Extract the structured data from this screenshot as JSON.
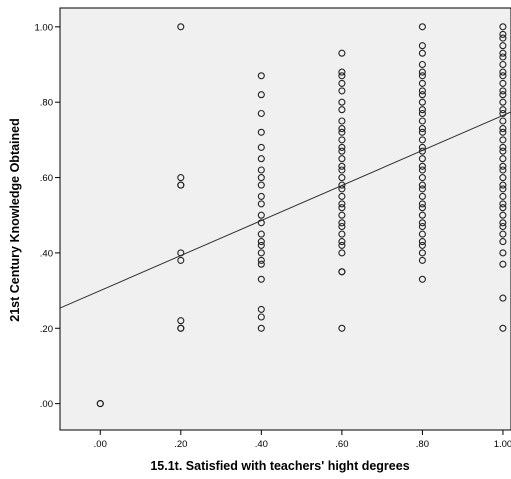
{
  "chart_data": {
    "type": "scatter",
    "xlabel": "15.1t. Satisfied with teachers' hight degrees",
    "ylabel": "21st Century Knowledge Obtained",
    "xlim": [
      -0.1,
      1.02
    ],
    "ylim": [
      -0.07,
      1.05
    ],
    "x_ticks": [
      0,
      0.2,
      0.4,
      0.6,
      0.8,
      1.0
    ],
    "x_tick_labels": [
      ".00",
      ".20",
      ".40",
      ".60",
      ".80",
      "1.00"
    ],
    "y_ticks": [
      0,
      0.2,
      0.4,
      0.6,
      0.8,
      1.0
    ],
    "y_tick_labels": [
      ".00",
      ".20",
      ".40",
      ".60",
      ".80",
      "1.00"
    ],
    "grid": false,
    "background": "#f0f0f0",
    "marker": "open-circle",
    "marker_color": "#222222",
    "series": [
      {
        "points": [
          [
            0.0,
            0.0
          ],
          [
            0.0,
            0.0
          ],
          [
            0.2,
            1.0
          ],
          [
            0.2,
            0.6
          ],
          [
            0.2,
            0.58
          ],
          [
            0.2,
            0.58
          ],
          [
            0.2,
            0.4
          ],
          [
            0.2,
            0.38
          ],
          [
            0.2,
            0.22
          ],
          [
            0.2,
            0.2
          ],
          [
            0.2,
            0.2
          ],
          [
            0.4,
            0.87
          ],
          [
            0.4,
            0.82
          ],
          [
            0.4,
            0.77
          ],
          [
            0.4,
            0.72
          ],
          [
            0.4,
            0.68
          ],
          [
            0.4,
            0.65
          ],
          [
            0.4,
            0.62
          ],
          [
            0.4,
            0.6
          ],
          [
            0.4,
            0.58
          ],
          [
            0.4,
            0.55
          ],
          [
            0.4,
            0.53
          ],
          [
            0.4,
            0.5
          ],
          [
            0.4,
            0.48
          ],
          [
            0.4,
            0.45
          ],
          [
            0.4,
            0.43
          ],
          [
            0.4,
            0.42
          ],
          [
            0.4,
            0.4
          ],
          [
            0.4,
            0.38
          ],
          [
            0.4,
            0.37
          ],
          [
            0.4,
            0.33
          ],
          [
            0.4,
            0.25
          ],
          [
            0.4,
            0.23
          ],
          [
            0.4,
            0.2
          ],
          [
            0.6,
            0.93
          ],
          [
            0.6,
            0.88
          ],
          [
            0.6,
            0.87
          ],
          [
            0.6,
            0.85
          ],
          [
            0.6,
            0.83
          ],
          [
            0.6,
            0.8
          ],
          [
            0.6,
            0.78
          ],
          [
            0.6,
            0.75
          ],
          [
            0.6,
            0.73
          ],
          [
            0.6,
            0.72
          ],
          [
            0.6,
            0.7
          ],
          [
            0.6,
            0.68
          ],
          [
            0.6,
            0.67
          ],
          [
            0.6,
            0.65
          ],
          [
            0.6,
            0.63
          ],
          [
            0.6,
            0.62
          ],
          [
            0.6,
            0.6
          ],
          [
            0.6,
            0.58
          ],
          [
            0.6,
            0.57
          ],
          [
            0.6,
            0.55
          ],
          [
            0.6,
            0.53
          ],
          [
            0.6,
            0.52
          ],
          [
            0.6,
            0.5
          ],
          [
            0.6,
            0.48
          ],
          [
            0.6,
            0.47
          ],
          [
            0.6,
            0.45
          ],
          [
            0.6,
            0.43
          ],
          [
            0.6,
            0.42
          ],
          [
            0.6,
            0.4
          ],
          [
            0.6,
            0.35
          ],
          [
            0.6,
            0.35
          ],
          [
            0.6,
            0.2
          ],
          [
            0.8,
            1.0
          ],
          [
            0.8,
            0.95
          ],
          [
            0.8,
            0.93
          ],
          [
            0.8,
            0.9
          ],
          [
            0.8,
            0.88
          ],
          [
            0.8,
            0.87
          ],
          [
            0.8,
            0.85
          ],
          [
            0.8,
            0.83
          ],
          [
            0.8,
            0.82
          ],
          [
            0.8,
            0.8
          ],
          [
            0.8,
            0.78
          ],
          [
            0.8,
            0.77
          ],
          [
            0.8,
            0.75
          ],
          [
            0.8,
            0.73
          ],
          [
            0.8,
            0.72
          ],
          [
            0.8,
            0.7
          ],
          [
            0.8,
            0.68
          ],
          [
            0.8,
            0.67
          ],
          [
            0.8,
            0.65
          ],
          [
            0.8,
            0.63
          ],
          [
            0.8,
            0.62
          ],
          [
            0.8,
            0.6
          ],
          [
            0.8,
            0.58
          ],
          [
            0.8,
            0.57
          ],
          [
            0.8,
            0.55
          ],
          [
            0.8,
            0.53
          ],
          [
            0.8,
            0.52
          ],
          [
            0.8,
            0.5
          ],
          [
            0.8,
            0.48
          ],
          [
            0.8,
            0.47
          ],
          [
            0.8,
            0.45
          ],
          [
            0.8,
            0.43
          ],
          [
            0.8,
            0.42
          ],
          [
            0.8,
            0.4
          ],
          [
            0.8,
            0.38
          ],
          [
            0.8,
            0.33
          ],
          [
            1.0,
            1.0
          ],
          [
            1.0,
            0.98
          ],
          [
            1.0,
            0.97
          ],
          [
            1.0,
            0.95
          ],
          [
            1.0,
            0.93
          ],
          [
            1.0,
            0.92
          ],
          [
            1.0,
            0.9
          ],
          [
            1.0,
            0.88
          ],
          [
            1.0,
            0.87
          ],
          [
            1.0,
            0.85
          ],
          [
            1.0,
            0.83
          ],
          [
            1.0,
            0.82
          ],
          [
            1.0,
            0.8
          ],
          [
            1.0,
            0.78
          ],
          [
            1.0,
            0.77
          ],
          [
            1.0,
            0.75
          ],
          [
            1.0,
            0.73
          ],
          [
            1.0,
            0.72
          ],
          [
            1.0,
            0.7
          ],
          [
            1.0,
            0.68
          ],
          [
            1.0,
            0.67
          ],
          [
            1.0,
            0.65
          ],
          [
            1.0,
            0.63
          ],
          [
            1.0,
            0.62
          ],
          [
            1.0,
            0.6
          ],
          [
            1.0,
            0.58
          ],
          [
            1.0,
            0.57
          ],
          [
            1.0,
            0.55
          ],
          [
            1.0,
            0.53
          ],
          [
            1.0,
            0.52
          ],
          [
            1.0,
            0.5
          ],
          [
            1.0,
            0.48
          ],
          [
            1.0,
            0.47
          ],
          [
            1.0,
            0.45
          ],
          [
            1.0,
            0.43
          ],
          [
            1.0,
            0.4
          ],
          [
            1.0,
            0.37
          ],
          [
            1.0,
            0.28
          ],
          [
            1.0,
            0.2
          ]
        ]
      }
    ],
    "fit_line": {
      "type": "linear",
      "intercept": 0.3,
      "slope": 0.465,
      "color": "#333333"
    }
  }
}
